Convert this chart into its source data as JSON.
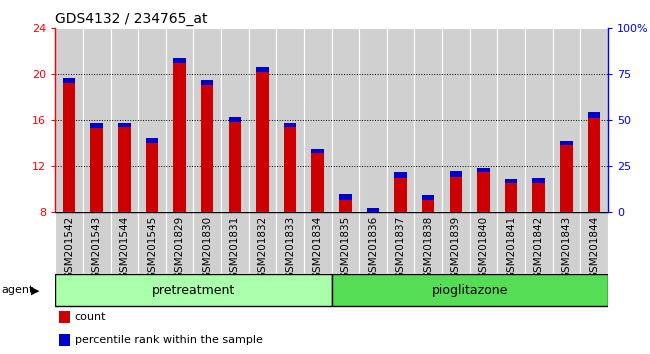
{
  "title": "GDS4132 / 234765_at",
  "categories": [
    "GSM201542",
    "GSM201543",
    "GSM201544",
    "GSM201545",
    "GSM201829",
    "GSM201830",
    "GSM201831",
    "GSM201832",
    "GSM201833",
    "GSM201834",
    "GSM201835",
    "GSM201836",
    "GSM201837",
    "GSM201838",
    "GSM201839",
    "GSM201840",
    "GSM201841",
    "GSM201842",
    "GSM201843",
    "GSM201844"
  ],
  "count_values": [
    19.7,
    15.8,
    15.8,
    14.5,
    21.4,
    19.5,
    16.3,
    20.6,
    15.8,
    13.5,
    9.6,
    8.4,
    11.5,
    9.5,
    11.6,
    11.9,
    10.9,
    11.0,
    14.2,
    16.7
  ],
  "percentile_values": [
    0.45,
    0.5,
    0.38,
    0.5,
    0.42,
    0.42,
    0.42,
    0.38,
    0.38,
    0.35,
    0.55,
    0.7,
    0.48,
    0.42,
    0.48,
    0.35,
    0.35,
    0.42,
    0.38,
    0.48
  ],
  "bar_bottom": 8.0,
  "count_color": "#cc0000",
  "percentile_color": "#0000cc",
  "ylim_left": [
    8,
    24
  ],
  "ylim_right": [
    0,
    100
  ],
  "yticks_left": [
    8,
    12,
    16,
    20,
    24
  ],
  "yticks_right": [
    0,
    25,
    50,
    75,
    100
  ],
  "yticklabels_right": [
    "0",
    "25",
    "50",
    "75",
    "100%"
  ],
  "cell_bg": "#d0d0d0",
  "cell_border": "#ffffff",
  "chart_bg": "#ffffff",
  "group1_color": "#aaffaa",
  "group2_color": "#55dd55",
  "title_fontsize": 10,
  "tick_fontsize": 7.5,
  "bar_width": 0.45
}
